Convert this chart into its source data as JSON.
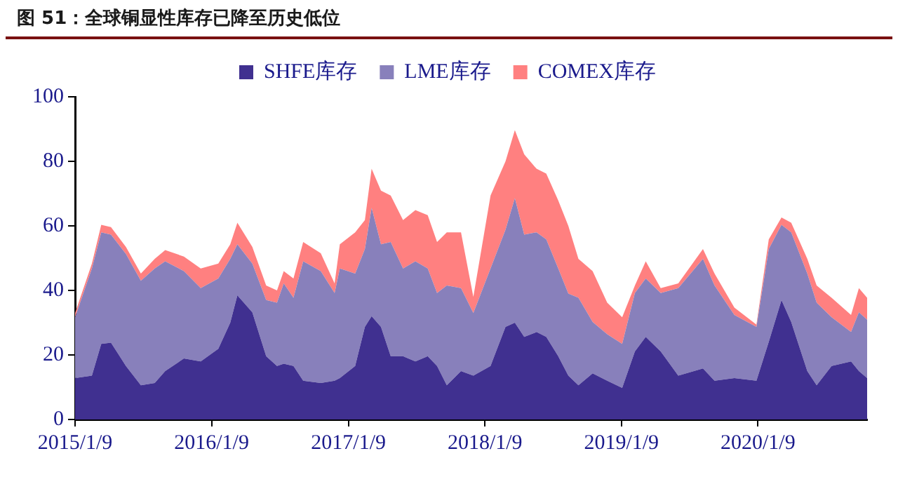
{
  "chart_data": {
    "type": "area",
    "stacked": true,
    "title": "图 51：全球铜显性库存已降至历史低位",
    "x": [
      "2015-01-09",
      "2015-02-23",
      "2015-03-20",
      "2015-04-15",
      "2015-05-25",
      "2015-07-04",
      "2015-08-10",
      "2015-09-07",
      "2015-10-27",
      "2015-12-11",
      "2016-01-27",
      "2016-02-28",
      "2016-03-18",
      "2016-04-27",
      "2016-06-03",
      "2016-07-02",
      "2016-07-20",
      "2016-08-15",
      "2016-09-10",
      "2016-10-27",
      "2016-12-03",
      "2016-12-17",
      "2017-01-27",
      "2017-02-22",
      "2017-03-12",
      "2017-04-06",
      "2017-05-02",
      "2017-06-04",
      "2017-07-07",
      "2017-08-09",
      "2017-09-03",
      "2017-09-29",
      "2017-11-06",
      "2017-12-09",
      "2018-01-24",
      "2018-03-05",
      "2018-03-30",
      "2018-04-24",
      "2018-05-27",
      "2018-06-22",
      "2018-07-24",
      "2018-08-20",
      "2018-09-16",
      "2018-10-24",
      "2018-12-02",
      "2019-01-11",
      "2019-02-14",
      "2019-03-15",
      "2019-04-24",
      "2019-06-10",
      "2019-08-15",
      "2019-09-15",
      "2019-11-07",
      "2020-01-05",
      "2020-02-07",
      "2020-03-12",
      "2020-04-07",
      "2020-05-20",
      "2020-06-14",
      "2020-07-24",
      "2020-09-14",
      "2020-10-05",
      "2020-10-27"
    ],
    "series": [
      {
        "name": "SHFE库存",
        "color": "#403090",
        "values": [
          12.8,
          13.6,
          23.4,
          23.8,
          16.6,
          10.6,
          11.3,
          15,
          18.9,
          18,
          21.9,
          30,
          38.5,
          33.2,
          19.6,
          16.6,
          17.3,
          16.6,
          12,
          11.3,
          12,
          12.8,
          16.6,
          28.7,
          32,
          28.7,
          19.6,
          19.6,
          18,
          19.6,
          16.6,
          10.6,
          15,
          13.6,
          16.6,
          28.7,
          30,
          25.6,
          27.1,
          25.6,
          19.6,
          13.6,
          10.6,
          14.3,
          12,
          9.8,
          21.1,
          25.6,
          21.1,
          13.6,
          15.8,
          12,
          12.8,
          12,
          24.1,
          37,
          30.2,
          15,
          10.6,
          16.6,
          18,
          15,
          12.8
        ]
      },
      {
        "name": "LME库存",
        "color": "#8880bb",
        "values": [
          18.9,
          33.2,
          34.6,
          33.5,
          34.7,
          32.4,
          35.5,
          34,
          27.1,
          22.7,
          21.8,
          19.8,
          15.8,
          15.1,
          17.4,
          19.6,
          24.9,
          21.1,
          37,
          34.7,
          27.2,
          34,
          28.6,
          24.1,
          33.6,
          25.6,
          35.4,
          27.2,
          31,
          27.2,
          22.6,
          30.9,
          25.7,
          19.4,
          30.2,
          30.1,
          38.6,
          31.7,
          30.9,
          30.2,
          27.2,
          25.4,
          27.1,
          15.9,
          14.4,
          13.6,
          18.1,
          18.1,
          18.1,
          27.1,
          34,
          29.5,
          19.6,
          16.7,
          28.7,
          23.3,
          27.8,
          30.2,
          25.6,
          15.1,
          9.1,
          18.2,
          18.1
        ]
      },
      {
        "name": "COMEX库存",
        "color": "#ff8080",
        "values": [
          1.3,
          1.5,
          2.3,
          2.3,
          2.2,
          2.2,
          3,
          3.5,
          4.5,
          6.1,
          4.6,
          4.5,
          6.7,
          5.2,
          4.5,
          3.8,
          3.8,
          6,
          6,
          5.5,
          3,
          7.5,
          12.8,
          9,
          12.1,
          16.6,
          14.4,
          15,
          15.9,
          16.5,
          15.8,
          16.5,
          17.3,
          5,
          22.6,
          21.2,
          21.1,
          24.9,
          19.7,
          20.4,
          21.1,
          21,
          12.1,
          15.8,
          9.8,
          8.3,
          2.3,
          5.3,
          1.5,
          1.5,
          3,
          3.7,
          2.3,
          0.7,
          3,
          2.3,
          3,
          4.6,
          5.3,
          6,
          5.3,
          7.5,
          6.8
        ]
      }
    ],
    "xlim": [
      "2015-01-09",
      "2020-10-27"
    ],
    "xticks": [
      {
        "value": "2015-01-09",
        "label": "2015/1/9"
      },
      {
        "value": "2016-01-09",
        "label": "2016/1/9"
      },
      {
        "value": "2017-01-09",
        "label": "2017/1/9"
      },
      {
        "value": "2018-01-09",
        "label": "2018/1/9"
      },
      {
        "value": "2019-01-09",
        "label": "2019/1/9"
      },
      {
        "value": "2020-01-09",
        "label": "2020/1/9"
      }
    ],
    "ylim": [
      0,
      100
    ],
    "yticks": [
      0,
      20,
      40,
      60,
      80,
      100
    ],
    "grid": false,
    "legend": "top"
  }
}
